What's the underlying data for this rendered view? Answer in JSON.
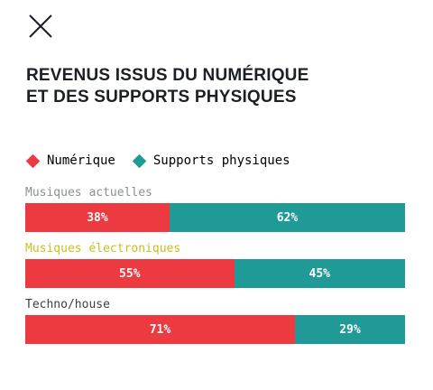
{
  "title_lines": [
    "REVENUS ISSUS DU NUMÉRIQUE",
    "ET DES SUPPORTS PHYSIQUES"
  ],
  "colors": {
    "numerique": "#ed3a40",
    "supports": "#1f9a96",
    "label_default": "#8a8f96",
    "label_highlight": "#c8bf1a",
    "label_dark": "#3a3f46"
  },
  "legend": [
    {
      "label": "Numérique",
      "color": "#ed3a40"
    },
    {
      "label": "Supports physiques",
      "color": "#1f9a96"
    }
  ],
  "chart_data": {
    "type": "bar",
    "orientation": "horizontal",
    "stacked": true,
    "categories": [
      "Musiques actuelles",
      "Musiques électroniques",
      "Techno/house"
    ],
    "series": [
      {
        "name": "Numérique",
        "values": [
          38,
          55,
          71
        ],
        "labels": [
          "38%",
          "55%",
          "71%"
        ]
      },
      {
        "name": "Supports physiques",
        "values": [
          62,
          45,
          29
        ],
        "labels": [
          "62%",
          "45%",
          "29%"
        ]
      }
    ],
    "xlim": [
      0,
      100
    ],
    "title": "REVENUS ISSUS DU NUMÉRIQUE ET DES SUPPORTS PHYSIQUES",
    "legend_position": "top-left",
    "grid": false
  }
}
